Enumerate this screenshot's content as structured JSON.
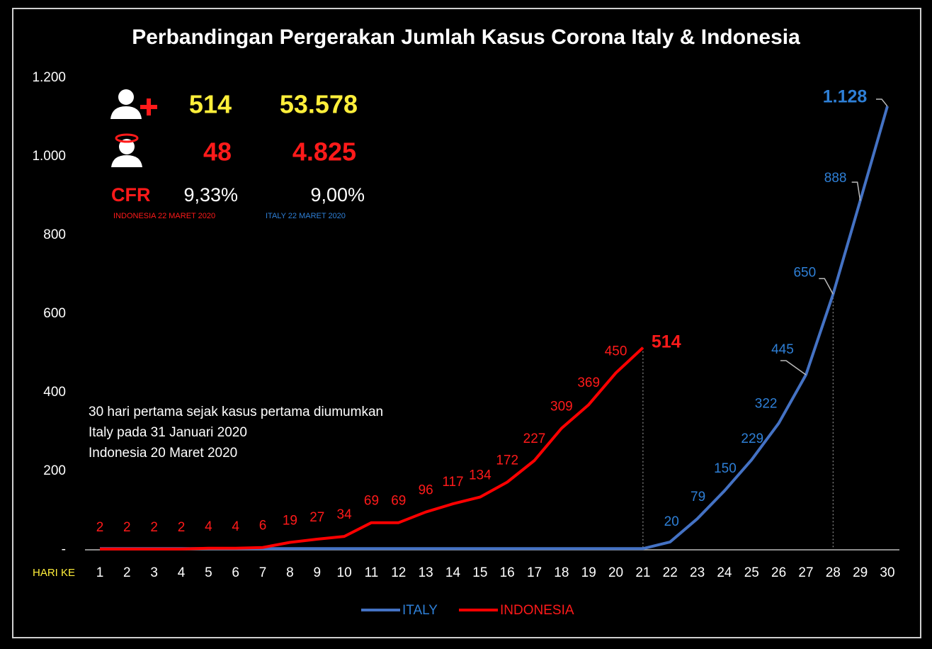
{
  "chart_data": {
    "type": "line",
    "title": "Perbandingan Pergerakan Jumlah Kasus Corona Italy & Indonesia",
    "x_label": "HARI KE",
    "categories": [
      "1",
      "2",
      "3",
      "4",
      "5",
      "6",
      "7",
      "8",
      "9",
      "10",
      "11",
      "12",
      "13",
      "14",
      "15",
      "16",
      "17",
      "18",
      "19",
      "20",
      "21",
      "22",
      "23",
      "24",
      "25",
      "26",
      "27",
      "28",
      "29",
      "30"
    ],
    "series": [
      {
        "name": "ITALY",
        "color": "#4472c4",
        "label_color": "#2e7fd6",
        "values": [
          3,
          3,
          3,
          3,
          3,
          3,
          3,
          3,
          3,
          3,
          3,
          3,
          3,
          3,
          3,
          3,
          3,
          3,
          3,
          3,
          3,
          20,
          79,
          150,
          229,
          322,
          445,
          650,
          888,
          1128
        ],
        "value_labels": [
          null,
          null,
          null,
          null,
          null,
          null,
          null,
          null,
          null,
          null,
          null,
          null,
          null,
          null,
          null,
          null,
          null,
          null,
          null,
          null,
          null,
          "20",
          "79",
          "150",
          "229",
          "322",
          "445",
          "650",
          "888",
          "1.128"
        ]
      },
      {
        "name": "INDONESIA",
        "color": "#ff0000",
        "label_color": "#ff1a1a",
        "values": [
          2,
          2,
          2,
          2,
          4,
          4,
          6,
          19,
          27,
          34,
          69,
          69,
          96,
          117,
          134,
          172,
          227,
          309,
          369,
          450,
          514,
          null,
          null,
          null,
          null,
          null,
          null,
          null,
          null,
          null
        ],
        "value_labels": [
          "2",
          "2",
          "2",
          "2",
          "4",
          "4",
          "6",
          "19",
          "27",
          "34",
          "69",
          "69",
          "96",
          "117",
          "134",
          "172",
          "227",
          "309",
          "369",
          "450",
          "514",
          null,
          null,
          null,
          null,
          null,
          null,
          null,
          null,
          null
        ]
      }
    ],
    "ylim": [
      0,
      1200
    ],
    "yticks": [
      {
        "value": 0,
        "label": "-"
      },
      200,
      400,
      600,
      800,
      {
        "value": 1000,
        "label": "1.000"
      },
      {
        "value": 1200,
        "label": "1.200"
      }
    ],
    "legend": "bottom",
    "annotations": [
      "30 hari pertama sejak kasus pertama diumumkan",
      "Italy pada 31 Januari 2020",
      "Indonesia 20 Maret 2020"
    ],
    "info": {
      "cases_indonesia": "514",
      "cases_italy": "53.578",
      "deaths_indonesia": "48",
      "deaths_italy": "4.825",
      "cfr_label": "CFR",
      "cfr_indonesia": "9,33%",
      "cfr_italy": "9,00%",
      "note_indonesia": "INDONESIA 22 MARET 2020",
      "note_italy": "ITALY 22 MARET 2020"
    }
  }
}
